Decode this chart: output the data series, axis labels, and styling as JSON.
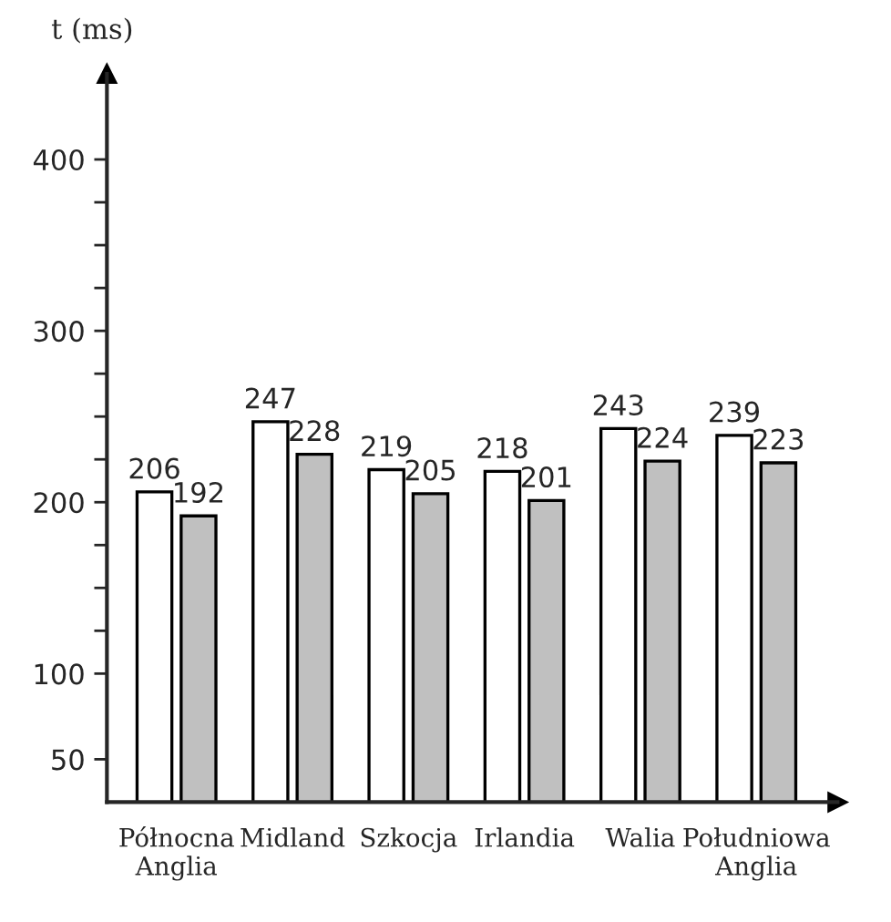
{
  "chart_data": {
    "type": "bar",
    "ylabel": "t (ms)",
    "categories": [
      "Północna\nAnglia",
      "Midland",
      "Szkocja",
      "Irlandia",
      "Walia",
      "Południowa\nAnglia"
    ],
    "series": [
      {
        "color": "#ffffff",
        "values": [
          206,
          247,
          219,
          218,
          243,
          239
        ]
      },
      {
        "color": "#c0c0c0",
        "values": [
          192,
          228,
          205,
          201,
          224,
          223
        ]
      }
    ],
    "ylim": [
      25,
      450
    ],
    "yticks": [
      50,
      100,
      {
        "value": 125,
        "label": null
      },
      {
        "value": 150,
        "label": null
      },
      {
        "value": 175,
        "label": null
      },
      200,
      {
        "value": 225,
        "label": null
      },
      {
        "value": 250,
        "label": null
      },
      {
        "value": 275,
        "label": null
      },
      300,
      {
        "value": 325,
        "label": null
      },
      {
        "value": 350,
        "label": null
      },
      {
        "value": 375,
        "label": null
      },
      400
    ],
    "data_labels": true,
    "grid": false
  }
}
